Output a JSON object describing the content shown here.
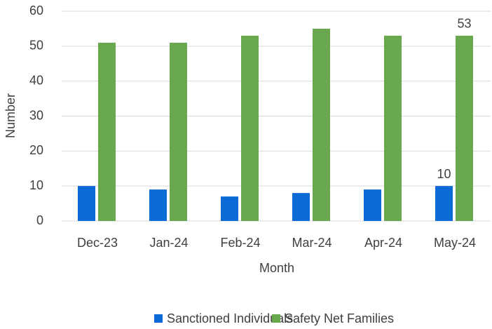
{
  "chart_data": {
    "type": "bar",
    "x_label": "Month",
    "y_label": "Number",
    "categories": [
      "Dec-23",
      "Jan-24",
      "Feb-24",
      "Mar-24",
      "Apr-24",
      "May-24"
    ],
    "series": [
      {
        "name": "Sanctioned Individuals",
        "color": "#0b6ad6",
        "values": [
          10,
          9,
          7,
          8,
          9,
          10
        ],
        "labeled": [
          5
        ]
      },
      {
        "name": "Safety Net Families",
        "color": "#6aa84f",
        "values": [
          51,
          51,
          53,
          55,
          53,
          53
        ],
        "labeled": [
          5
        ]
      }
    ],
    "ylim": [
      0,
      60
    ],
    "yticks": [
      0,
      10,
      20,
      30,
      40,
      50,
      60
    ],
    "grid": true,
    "legend": "bottom"
  }
}
